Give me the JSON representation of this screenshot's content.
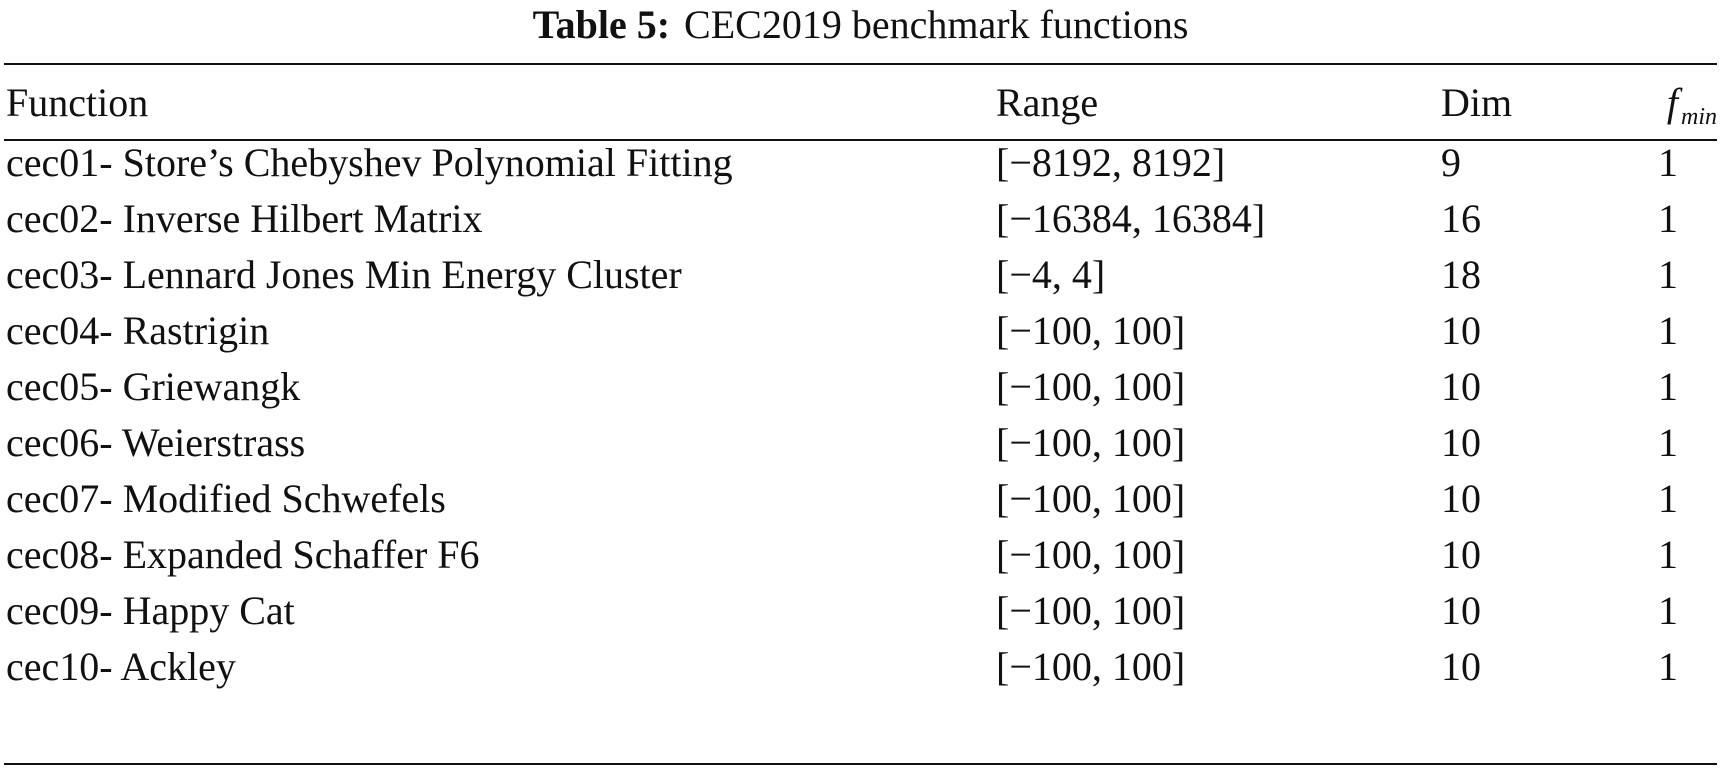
{
  "caption": {
    "label": "Table 5:",
    "title": "CEC2019 benchmark functions"
  },
  "headers": {
    "function": "Function",
    "range": "Range",
    "dim": "Dim",
    "fmin_symbol": "f",
    "fmin_subscript": "min"
  },
  "rows": [
    {
      "function": "cec01- Store’s Chebyshev Polynomial Fitting",
      "range": "[−8192, 8192]",
      "dim": "9",
      "fmin": "1"
    },
    {
      "function": "cec02- Inverse Hilbert Matrix",
      "range": "[−16384, 16384]",
      "dim": "16",
      "fmin": "1"
    },
    {
      "function": "cec03- Lennard Jones Min Energy Cluster",
      "range": "[−4, 4]",
      "dim": "18",
      "fmin": "1"
    },
    {
      "function": "cec04- Rastrigin",
      "range": "[−100, 100]",
      "dim": "10",
      "fmin": "1"
    },
    {
      "function": "cec05- Griewangk",
      "range": "[−100, 100]",
      "dim": "10",
      "fmin": "1"
    },
    {
      "function": "cec06- Weierstrass",
      "range": "[−100, 100]",
      "dim": "10",
      "fmin": "1"
    },
    {
      "function": "cec07- Modified Schwefels",
      "range": "[−100, 100]",
      "dim": "10",
      "fmin": "1"
    },
    {
      "function": "cec08- Expanded Schaffer F6",
      "range": "[−100, 100]",
      "dim": "10",
      "fmin": "1"
    },
    {
      "function": "cec09- Happy Cat",
      "range": "[−100, 100]",
      "dim": "10",
      "fmin": "1"
    },
    {
      "function": "cec10- Ackley",
      "range": "[−100, 100]",
      "dim": "10",
      "fmin": "1"
    }
  ]
}
